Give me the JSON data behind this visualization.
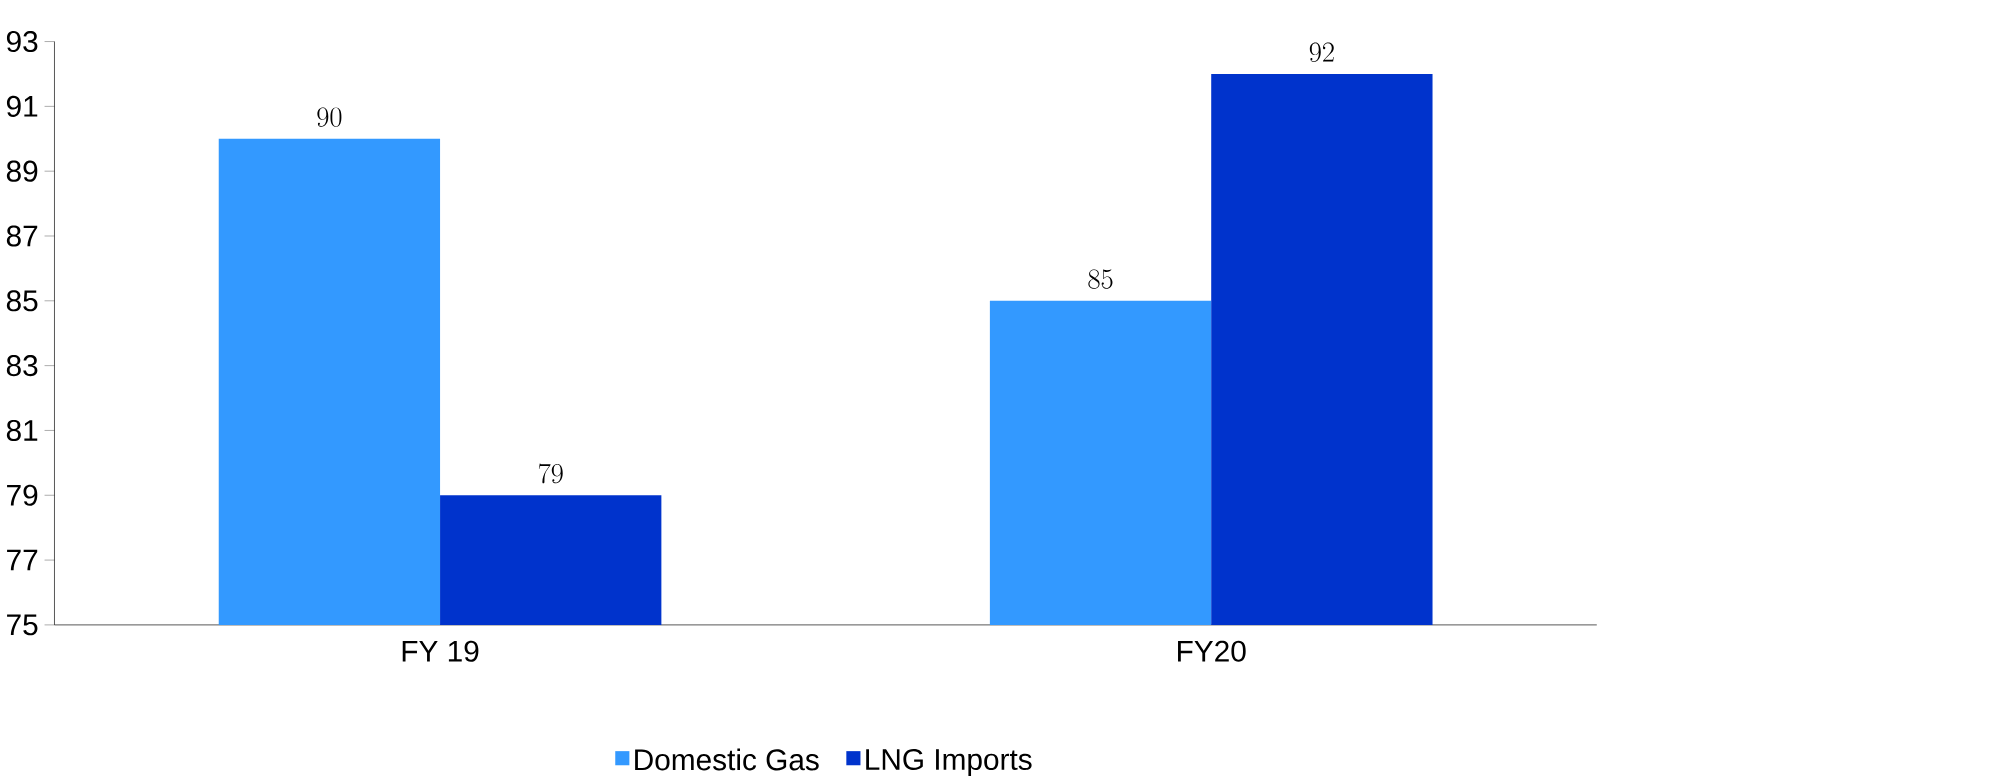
{
  "chart_data": {
    "type": "bar",
    "categories": [
      "FY 19",
      "FY20"
    ],
    "series": [
      {
        "name": "Domestic Gas",
        "color": "#3399ff",
        "values": [
          90,
          85
        ]
      },
      {
        "name": "LNG Imports",
        "color": "#0033cc",
        "values": [
          79,
          92
        ]
      }
    ],
    "ylim": [
      75,
      93
    ],
    "yticks": [
      75,
      77,
      79,
      81,
      83,
      85,
      87,
      89,
      91,
      93
    ],
    "data_labels": true,
    "grid": false,
    "legend": "bottom"
  }
}
